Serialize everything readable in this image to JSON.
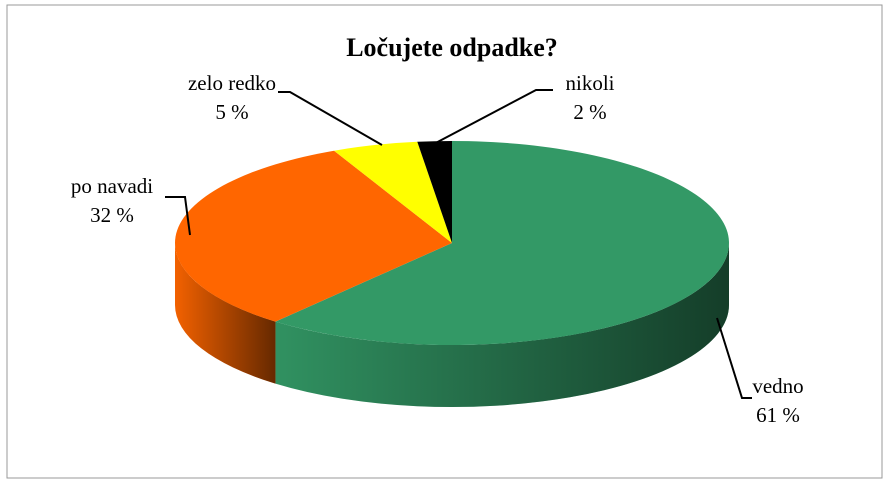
{
  "chart_data": {
    "type": "pie",
    "title": "Ločujete odpadke?",
    "categories": [
      "vedno",
      "po navadi",
      "zelo redko",
      "nikoli"
    ],
    "values": [
      61,
      32,
      5,
      2
    ],
    "value_labels": [
      "61 %",
      "32 %",
      "5 %",
      "2 %"
    ],
    "colors": [
      "#339966",
      "#ff6600",
      "#ffff00",
      "#000000"
    ]
  }
}
